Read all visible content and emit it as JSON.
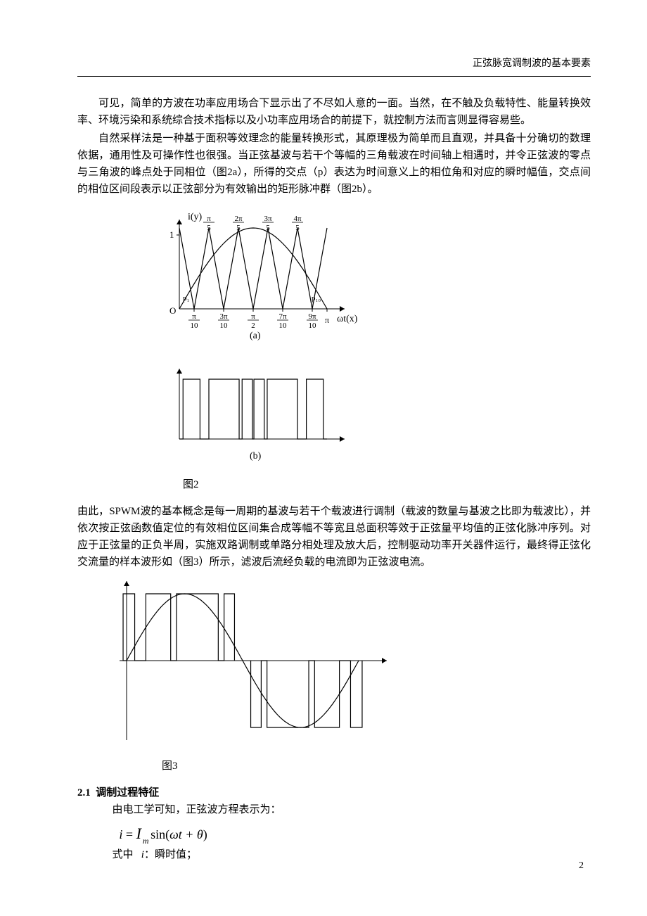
{
  "header": {
    "title": "正弦脉宽调制波的基本要素"
  },
  "paragraphs": {
    "p1": "可见，简单的方波在功率应用场合下显示出了不尽如人意的一面。当然，在不触及负载特性、能量转换效率、环境污染和系统综合技术指标以及小功率应用场合的前提下，就控制方法而言则显得容易些。",
    "p2": "自然采样法是一种基于面积等效理念的能量转换形式，其原理极为简单而且直观，并具备十分确切的数理依据，通用性及可操作性也很强。当正弦基波与若干个等幅的三角载波在时间轴上相遇时，并令正弦波的零点与三角波的峰点处于同相位（图2a），所得的交点（p）表达为时间意义上的相位角和对应的瞬时幅值，交点间的相位区间段表示以正弦部分为有效输出的矩形脉冲群（图2b）。",
    "p3": "由此，SPWM波的基本概念是每一周期的基波与若干个载波进行调制（载波的数量与基波之比即为载波比），并依次按正弦函数值定位的有效相位区间集合成等幅不等宽且总面积等效于正弦量平均值的正弦化脉冲序列。对应于正弦量的正负半周，实施双路调制或单路分相处理及放大后，控制驱动功率开关器件运行，最终得正弦化交流量的样本波形如（图3）所示，滤波后流经负载的电流即为正弦波电流。"
  },
  "figure2": {
    "label_a": "(a)",
    "label_b": "(b)",
    "caption": "图2",
    "axes": {
      "ylabel": "i(y)",
      "xlabel": "ωt(x)",
      "ymax_label": "1",
      "origin": "O",
      "xticks": [
        {
          "pos": 0.1,
          "num": "π",
          "den": "10"
        },
        {
          "pos": 0.3,
          "num": "3π",
          "den": "10"
        },
        {
          "pos": 0.5,
          "num": "π",
          "den": "2"
        },
        {
          "pos": 0.7,
          "num": "7π",
          "den": "10"
        },
        {
          "pos": 0.9,
          "num": "9π",
          "den": "10"
        },
        {
          "pos": 1.0,
          "num": "π",
          "den": ""
        }
      ],
      "top_ticks": [
        {
          "pos": 0.2,
          "num": "π",
          "den": "5"
        },
        {
          "pos": 0.4,
          "num": "2π",
          "den": "5"
        },
        {
          "pos": 0.6,
          "num": "3π",
          "den": "5"
        },
        {
          "pos": 0.8,
          "num": "4π",
          "den": "5"
        }
      ],
      "p_labels": {
        "left": "p₁",
        "right": "p₁₀"
      }
    },
    "chart_a": {
      "type": "line",
      "sine": {
        "color": "#000000",
        "width": 1.2,
        "samples": 50
      },
      "triangles": {
        "color": "#000000",
        "width": 1.2,
        "count": 5,
        "amplitude": 1.0
      },
      "xlim": [
        0,
        1.0
      ],
      "ylim": [
        0,
        1.0
      ],
      "background_color": "#ffffff"
    },
    "chart_b": {
      "type": "pulse",
      "color": "#000000",
      "width": 1.2,
      "height": 85,
      "pulses": [
        {
          "on": 0.025,
          "off": 0.14
        },
        {
          "on": 0.2,
          "off": 0.405
        },
        {
          "on": 0.425,
          "off": 0.495
        },
        {
          "on": 0.505,
          "off": 0.575
        },
        {
          "on": 0.595,
          "off": 0.8
        },
        {
          "on": 0.86,
          "off": 0.975
        }
      ]
    }
  },
  "figure3": {
    "caption": "图3",
    "chart": {
      "type": "spwm",
      "color": "#000000",
      "width": 1.2,
      "sine_amplitude": 1.0,
      "pulses_pos": [
        {
          "on": -0.015,
          "off": 0.035
        },
        {
          "on": 0.083,
          "off": 0.19
        },
        {
          "on": 0.215,
          "off": 0.395
        },
        {
          "on": 0.42,
          "off": 0.465
        }
      ],
      "pulses_neg": [
        {
          "on": 0.535,
          "off": 0.58
        },
        {
          "on": 0.605,
          "off": 0.785
        },
        {
          "on": 0.81,
          "off": 0.917
        },
        {
          "on": 0.965,
          "off": 1.015
        }
      ],
      "xlim": [
        0,
        1.0
      ],
      "ylim": [
        -1.1,
        1.1
      ],
      "background_color": "#ffffff"
    }
  },
  "section": {
    "number": "2.1",
    "title": "调制过程特征",
    "intro": "由电工学可知，正弦波方程表示为：",
    "formula_parts": {
      "i": "i",
      "eq": " = ",
      "Im": "I",
      "sub": "m",
      "fn": " sin(",
      "arg": "ωt + θ",
      "close": ")"
    },
    "where_label": "式中",
    "where_i": "i",
    "where_desc": "：瞬时值；"
  },
  "page_number": "2"
}
